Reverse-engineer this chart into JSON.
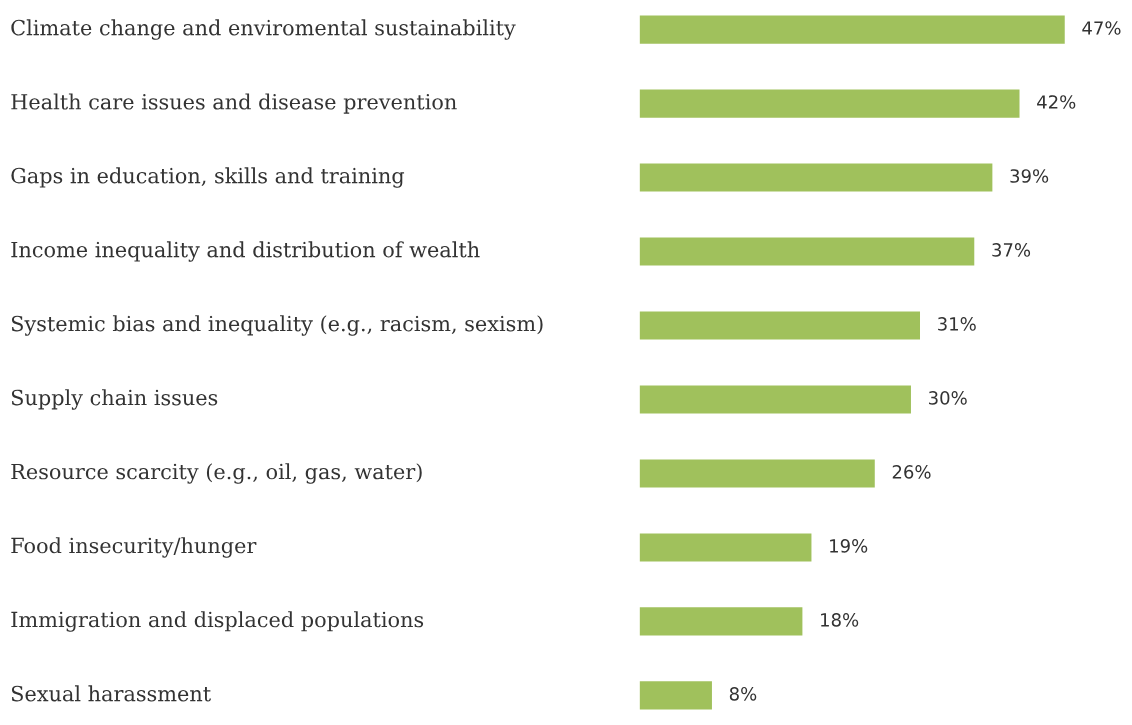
{
  "chart_data": {
    "type": "bar",
    "orientation": "horizontal",
    "categories": [
      "Climate change and enviromental sustainability",
      "Health care issues and disease prevention",
      "Gaps in education, skills and training",
      "Income inequality and distribution of wealth",
      "Systemic bias and inequality (e.g., racism, sexism)",
      "Supply chain issues",
      "Resource scarcity (e.g., oil, gas, water)",
      "Food insecurity/hunger",
      "Immigration and displaced populations",
      "Sexual harassment"
    ],
    "values": [
      47,
      42,
      39,
      37,
      31,
      30,
      26,
      19,
      18,
      8
    ],
    "value_labels": [
      "47%",
      "42%",
      "39%",
      "37%",
      "31%",
      "30%",
      "26%",
      "19%",
      "18%",
      "8%"
    ],
    "color": "#a0c15c"
  }
}
